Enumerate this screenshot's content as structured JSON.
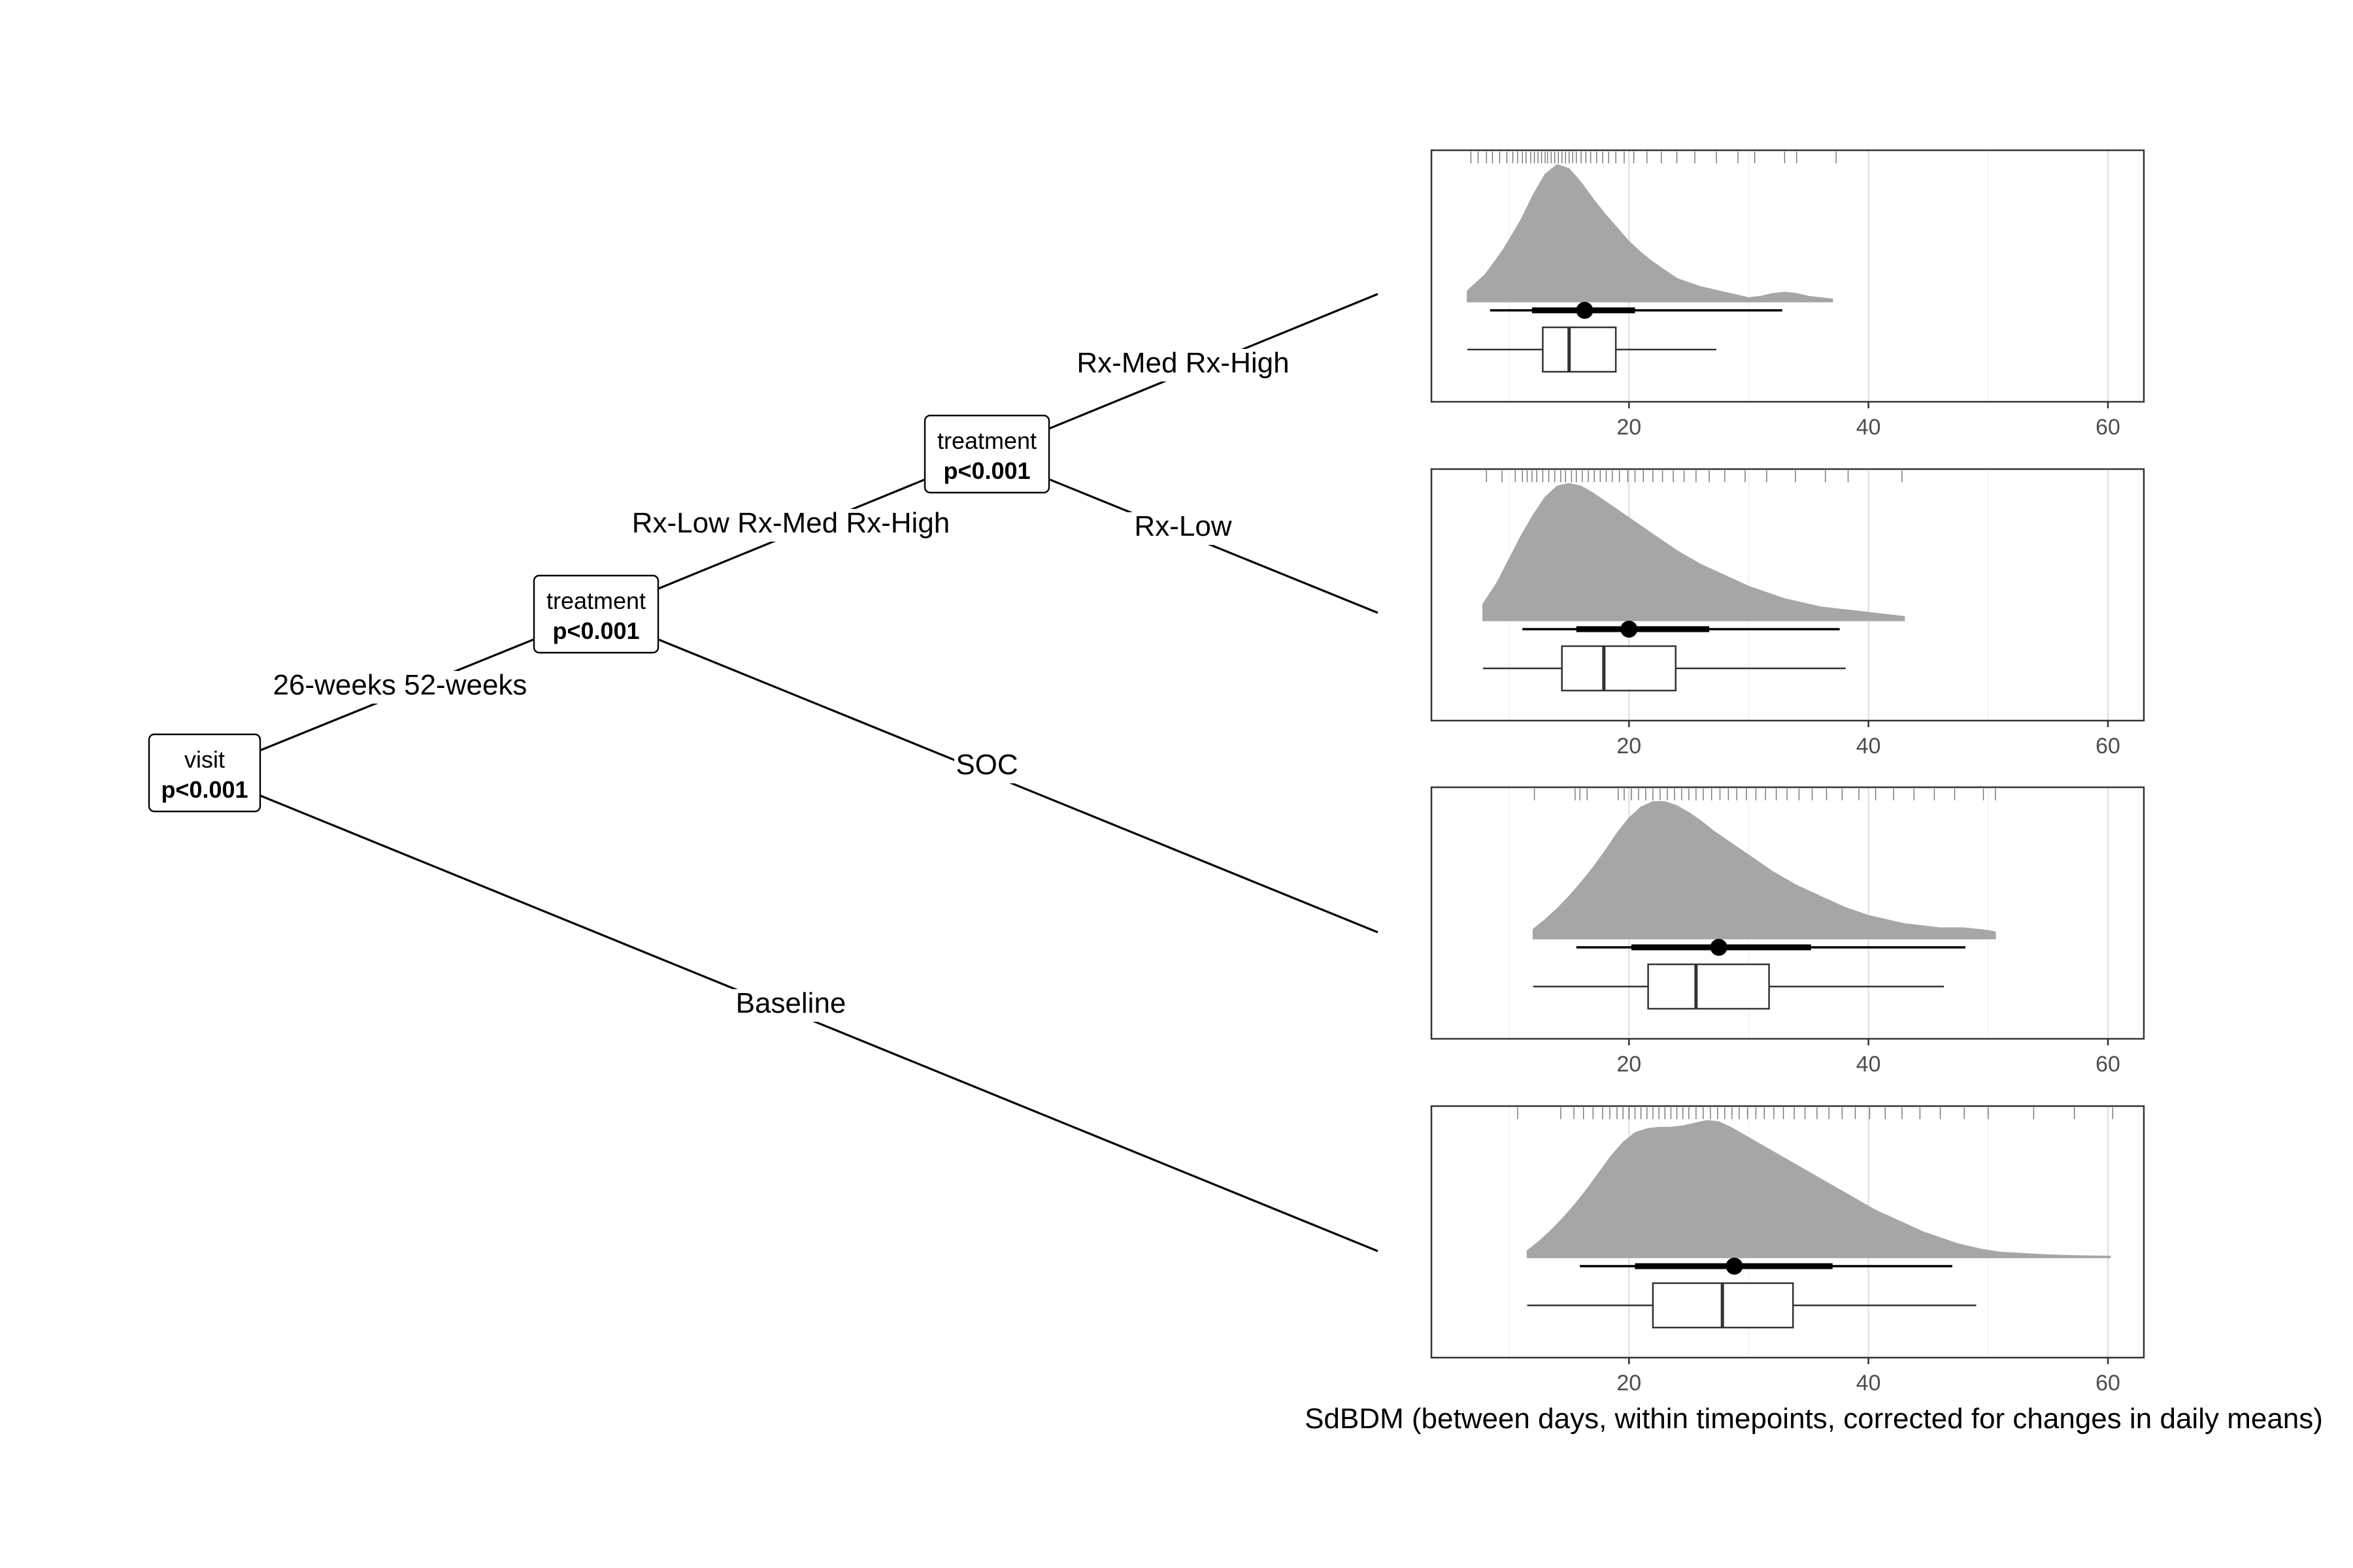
{
  "chart_data": {
    "type": "decision-tree-with-distribution-panels",
    "xlabel": "SdBDM (between days, within timepoints, corrected for changes in daily means)",
    "xlim": [
      3.5,
      63
    ],
    "xticks": [
      20,
      40,
      60
    ],
    "minor_gridlines": [
      10,
      30,
      50
    ],
    "nodes": [
      {
        "id": "visit",
        "title": "visit",
        "p": "p<0.001"
      },
      {
        "id": "treatment1",
        "title": "treatment",
        "p": "p<0.001"
      },
      {
        "id": "treatment2",
        "title": "treatment",
        "p": "p<0.001"
      }
    ],
    "edges": [
      {
        "from": "visit",
        "to": "treatment1",
        "label": "26-weeks 52-weeks"
      },
      {
        "from": "visit",
        "to": "leaf4",
        "label": "Baseline"
      },
      {
        "from": "treatment1",
        "to": "treatment2",
        "label": "Rx-Low Rx-Med Rx-High"
      },
      {
        "from": "treatment1",
        "to": "leaf3",
        "label": "SOC"
      },
      {
        "from": "treatment2",
        "to": "leaf1",
        "label": "Rx-Med Rx-High"
      },
      {
        "from": "treatment2",
        "to": "leaf2",
        "label": "Rx-Low"
      }
    ],
    "leaves": [
      {
        "id": "leaf1",
        "box": {
          "whisker_low": 6.5,
          "q1": 12.8,
          "median": 15.0,
          "q3": 18.9,
          "whisker_high": 27.3
        },
        "point_interval": {
          "point": 16.3,
          "inner": [
            11.9,
            20.5
          ],
          "outer": [
            8.4,
            32.8
          ]
        },
        "density": {
          "x": [
            6.5,
            8,
            9.5,
            11,
            12,
            13,
            14,
            15,
            16,
            17,
            18,
            19,
            20,
            21,
            22,
            23,
            24,
            25,
            26,
            27,
            28,
            29,
            30,
            31,
            32,
            33,
            34,
            35,
            36,
            37
          ],
          "y": [
            0.08,
            0.2,
            0.38,
            0.6,
            0.78,
            0.93,
            1.0,
            0.97,
            0.87,
            0.75,
            0.64,
            0.54,
            0.44,
            0.36,
            0.29,
            0.23,
            0.17,
            0.14,
            0.11,
            0.09,
            0.07,
            0.05,
            0.03,
            0.04,
            0.06,
            0.07,
            0.06,
            0.04,
            0.03,
            0.02
          ]
        },
        "rug": [
          6.8,
          7.4,
          8.1,
          8.6,
          9.2,
          9.8,
          10.3,
          10.7,
          11.1,
          11.4,
          11.8,
          12.1,
          12.4,
          12.7,
          13.0,
          13.2,
          13.5,
          13.8,
          14.1,
          14.4,
          14.7,
          15.0,
          15.3,
          15.6,
          16.0,
          16.4,
          16.8,
          17.3,
          17.8,
          18.3,
          18.9,
          19.6,
          20.4,
          21.5,
          22.7,
          24.0,
          25.5,
          27.3,
          29.1,
          30.5,
          33.0,
          34.0,
          37.3
        ]
      },
      {
        "id": "leaf2",
        "box": {
          "whisker_low": 7.8,
          "q1": 14.4,
          "median": 17.9,
          "q3": 23.9,
          "whisker_high": 38.1
        },
        "point_interval": {
          "point": 20.0,
          "inner": [
            15.6,
            26.7
          ],
          "outer": [
            11.1,
            37.6
          ]
        },
        "density": {
          "x": [
            7.8,
            9,
            10,
            11,
            12,
            13,
            14,
            15,
            16,
            17,
            18,
            19,
            20,
            21,
            22,
            23,
            24,
            25,
            26,
            27,
            28,
            29,
            30,
            31,
            32,
            33,
            34,
            35,
            36,
            37,
            38,
            39,
            40,
            41,
            42,
            43
          ],
          "y": [
            0.12,
            0.28,
            0.45,
            0.62,
            0.77,
            0.9,
            0.98,
            1.0,
            0.98,
            0.93,
            0.87,
            0.81,
            0.75,
            0.69,
            0.63,
            0.57,
            0.51,
            0.46,
            0.41,
            0.37,
            0.33,
            0.29,
            0.25,
            0.22,
            0.19,
            0.16,
            0.14,
            0.12,
            0.1,
            0.09,
            0.08,
            0.07,
            0.06,
            0.05,
            0.04,
            0.03
          ]
        },
        "rug": [
          8.1,
          9.4,
          10.5,
          11.1,
          11.5,
          11.9,
          12.3,
          12.8,
          13.3,
          13.8,
          14.3,
          14.7,
          15.2,
          15.6,
          16.1,
          16.6,
          17.1,
          17.6,
          18.1,
          18.6,
          19.2,
          19.9,
          20.5,
          21.2,
          22.0,
          22.8,
          23.7,
          24.6,
          25.6,
          26.7,
          28.0,
          29.7,
          31.5,
          33.9,
          36.4,
          38.3,
          42.8
        ]
      },
      {
        "id": "leaf3",
        "box": {
          "whisker_low": 12.0,
          "q1": 21.6,
          "median": 25.6,
          "q3": 31.7,
          "whisker_high": 46.3
        },
        "point_interval": {
          "point": 27.5,
          "inner": [
            20.2,
            35.2
          ],
          "outer": [
            15.6,
            48.1
          ]
        },
        "density": {
          "x": [
            12,
            13,
            14,
            15,
            16,
            17,
            18,
            19,
            20,
            21,
            22,
            23,
            24,
            25,
            26,
            27,
            28,
            29,
            30,
            31,
            32,
            33,
            34,
            35,
            36,
            37,
            38,
            39,
            40,
            41,
            42,
            43,
            44,
            45,
            46,
            47,
            48,
            49,
            50,
            50.6
          ],
          "y": [
            0.07,
            0.14,
            0.22,
            0.31,
            0.41,
            0.52,
            0.64,
            0.77,
            0.88,
            0.96,
            1.0,
            1.0,
            0.97,
            0.92,
            0.86,
            0.79,
            0.73,
            0.67,
            0.61,
            0.55,
            0.49,
            0.44,
            0.39,
            0.35,
            0.31,
            0.27,
            0.23,
            0.2,
            0.17,
            0.15,
            0.13,
            0.11,
            0.1,
            0.09,
            0.08,
            0.08,
            0.08,
            0.07,
            0.06,
            0.05
          ]
        },
        "rug": [
          12.1,
          15.5,
          15.9,
          16.5,
          19.1,
          19.6,
          20.2,
          20.8,
          21.4,
          22.0,
          22.6,
          23.2,
          23.8,
          24.4,
          25.0,
          25.6,
          26.2,
          26.9,
          27.6,
          28.3,
          29.0,
          29.8,
          30.6,
          31.4,
          32.3,
          33.2,
          34.2,
          35.3,
          36.5,
          37.8,
          39.2,
          40.6,
          42.1,
          43.8,
          45.5,
          47.2,
          49.6,
          50.6
        ]
      },
      {
        "id": "leaf4",
        "box": {
          "whisker_low": 11.5,
          "q1": 22.0,
          "median": 27.8,
          "q3": 33.7,
          "whisker_high": 49.0
        },
        "point_interval": {
          "point": 28.8,
          "inner": [
            20.5,
            37.0
          ],
          "outer": [
            15.9,
            47.0
          ]
        },
        "density": {
          "x": [
            11.5,
            12.5,
            13.5,
            14.5,
            15.5,
            16.5,
            17.5,
            18.5,
            19.5,
            20.5,
            21.5,
            22.5,
            23.5,
            24.5,
            25.5,
            26.5,
            27.5,
            28.5,
            29.5,
            30.5,
            31.5,
            32.5,
            33.5,
            34.5,
            35.5,
            36.5,
            37.5,
            38.5,
            39.5,
            40.5,
            41.5,
            42.5,
            43.5,
            44.5,
            45.5,
            46.5,
            47.5,
            48.5,
            49.5,
            51,
            53,
            55,
            57,
            60.2
          ],
          "y": [
            0.05,
            0.12,
            0.2,
            0.29,
            0.39,
            0.5,
            0.62,
            0.74,
            0.84,
            0.91,
            0.94,
            0.95,
            0.95,
            0.96,
            0.98,
            1.0,
            0.99,
            0.95,
            0.9,
            0.85,
            0.8,
            0.75,
            0.7,
            0.65,
            0.6,
            0.55,
            0.5,
            0.45,
            0.4,
            0.35,
            0.31,
            0.27,
            0.23,
            0.19,
            0.16,
            0.13,
            0.1,
            0.08,
            0.06,
            0.04,
            0.03,
            0.02,
            0.015,
            0.01
          ]
        },
        "rug": [
          10.7,
          14.3,
          15.4,
          16.2,
          17.0,
          17.8,
          18.4,
          19.0,
          19.5,
          20.0,
          20.5,
          21.0,
          21.5,
          22.0,
          22.5,
          23.0,
          23.5,
          24.0,
          24.5,
          25.0,
          25.6,
          26.2,
          26.8,
          27.4,
          28.0,
          28.6,
          29.2,
          29.9,
          30.6,
          31.3,
          32.1,
          32.9,
          33.8,
          34.7,
          35.7,
          36.7,
          37.8,
          38.9,
          40.1,
          41.4,
          42.8,
          44.3,
          46.0,
          48.0,
          50.0,
          53.8,
          57.2,
          60.4
        ]
      }
    ]
  }
}
